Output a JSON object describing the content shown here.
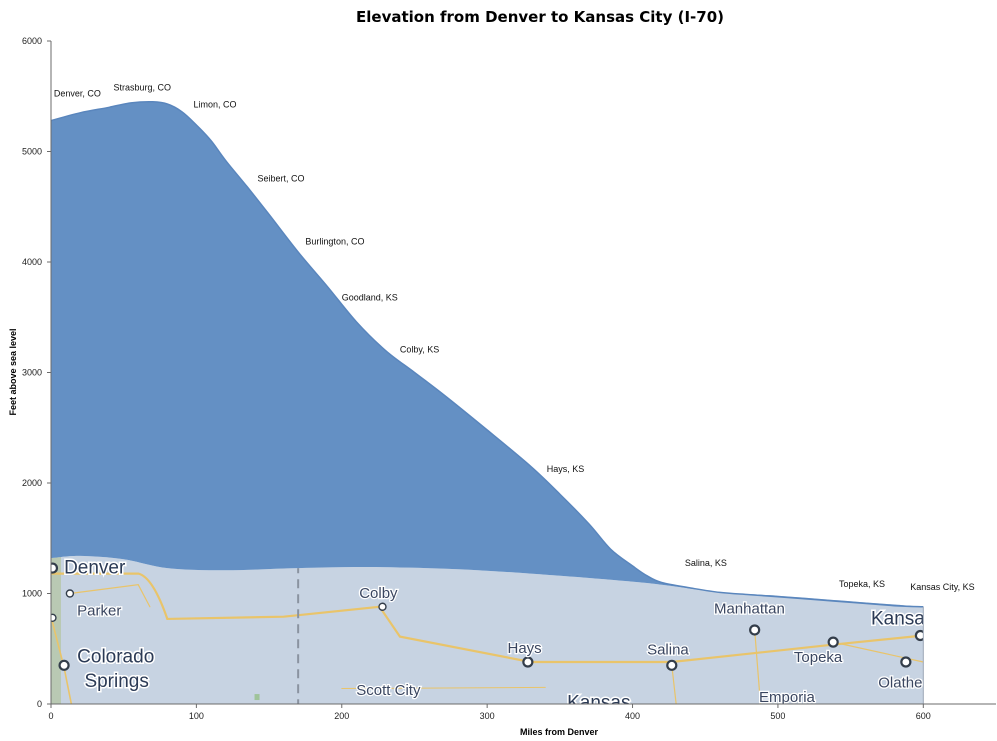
{
  "chart_data": {
    "type": "area",
    "title": "Elevation from Denver to Kansas City (I-70)",
    "xlabel": "Miles from Denver",
    "ylabel": "Feet above sea level",
    "xlim": [
      0,
      650
    ],
    "ylim": [
      0,
      6000
    ],
    "x_ticks": [
      0,
      100,
      200,
      300,
      400,
      500,
      600
    ],
    "y_ticks": [
      0,
      1000,
      2000,
      3000,
      4000,
      5000,
      6000
    ],
    "grid": false,
    "series": [
      {
        "color": "#6490c4",
        "x": [
          0,
          20,
          40,
          55,
          70,
          80,
          90,
          100,
          110,
          120,
          135,
          150,
          170,
          190,
          210,
          230,
          250,
          270,
          300,
          330,
          350,
          370,
          385,
          400,
          410,
          420,
          440,
          460,
          480,
          500,
          540,
          580,
          600
        ],
        "y": [
          5280,
          5350,
          5400,
          5440,
          5450,
          5430,
          5360,
          5240,
          5100,
          4920,
          4680,
          4430,
          4090,
          3780,
          3460,
          3200,
          3000,
          2800,
          2480,
          2150,
          1900,
          1630,
          1400,
          1250,
          1160,
          1100,
          1050,
          1010,
          990,
          970,
          930,
          890,
          880
        ]
      }
    ],
    "annotations": [
      {
        "x": 2,
        "y": 5500,
        "text": "Denver, CO"
      },
      {
        "x": 43,
        "y": 5550,
        "text": "Strasburg, CO"
      },
      {
        "x": 98,
        "y": 5400,
        "text": "Limon, CO"
      },
      {
        "x": 142,
        "y": 4730,
        "text": "Seibert, CO"
      },
      {
        "x": 175,
        "y": 4160,
        "text": "Burlington, CO"
      },
      {
        "x": 200,
        "y": 3650,
        "text": "Goodland, KS"
      },
      {
        "x": 240,
        "y": 3180,
        "text": "Colby, KS"
      },
      {
        "x": 341,
        "y": 2100,
        "text": "Hays, KS"
      },
      {
        "x": 436,
        "y": 1250,
        "text": "Salina, KS"
      },
      {
        "x": 542,
        "y": 1060,
        "text": "Topeka, KS"
      },
      {
        "x": 591,
        "y": 1030,
        "text": "Kansas City, KS"
      }
    ],
    "map_labels": [
      {
        "text": "Denver",
        "size": "big",
        "x": 9,
        "y": 1180
      },
      {
        "text": "Parker",
        "size": "mid",
        "x": 18,
        "y": 800
      },
      {
        "text": "Colorado",
        "size": "big",
        "x": 18,
        "y": 375
      },
      {
        "text": "Springs",
        "size": "big",
        "x": 23,
        "y": 155
      },
      {
        "text": "Colby",
        "size": "mid",
        "x": 212,
        "y": 960
      },
      {
        "text": "Hays",
        "size": "mid",
        "x": 314,
        "y": 460
      },
      {
        "text": "Salina",
        "size": "mid",
        "x": 410,
        "y": 450
      },
      {
        "text": "Manhattan",
        "size": "mid",
        "x": 456,
        "y": 820
      },
      {
        "text": "Topeka",
        "size": "mid",
        "x": 511,
        "y": 380
      },
      {
        "text": "Kansa",
        "size": "big",
        "x": 564,
        "y": 720
      },
      {
        "text": "Olathe",
        "size": "mid",
        "x": 569,
        "y": 150
      },
      {
        "text": "Scott City",
        "size": "mid",
        "x": 210,
        "y": 80
      },
      {
        "text": "Emporia",
        "size": "mid",
        "x": 487,
        "y": 20
      },
      {
        "text": "Kansas",
        "size": "big",
        "x": 355,
        "y": -40
      }
    ],
    "map_cities": [
      {
        "x": 1,
        "y": 1230
      },
      {
        "x": 13,
        "y": 1000
      },
      {
        "x": 1,
        "y": 780
      },
      {
        "x": 9,
        "y": 350
      },
      {
        "x": 228,
        "y": 880
      },
      {
        "x": 328,
        "y": 380
      },
      {
        "x": 427,
        "y": 350
      },
      {
        "x": 484,
        "y": 670
      },
      {
        "x": 538,
        "y": 560
      },
      {
        "x": 588,
        "y": 380
      },
      {
        "x": 598,
        "y": 620
      }
    ]
  }
}
